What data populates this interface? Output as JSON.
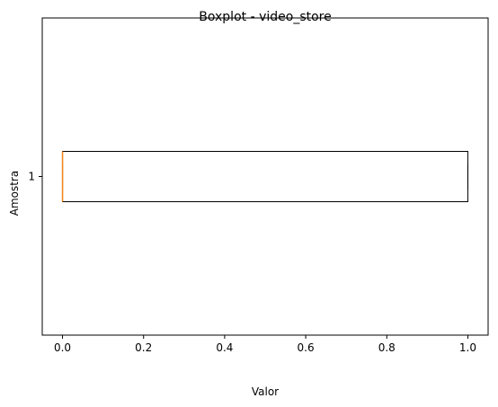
{
  "chart_data": {
    "type": "boxplot",
    "orientation": "horizontal",
    "title": "Boxplot - video_store",
    "xlabel": "Valor",
    "ylabel": "Amostra",
    "xlim": [
      -0.05,
      1.05
    ],
    "xticks": [
      0.0,
      0.2,
      0.4,
      0.6,
      0.8,
      1.0
    ],
    "xtick_labels": [
      "0.0",
      "0.2",
      "0.4",
      "0.6",
      "0.8",
      "1.0"
    ],
    "categories": [
      "1"
    ],
    "boxes": [
      {
        "category": "1",
        "whisker_low": 0.0,
        "q1": 0.0,
        "median": 0.0,
        "q3": 1.0,
        "whisker_high": 1.0
      }
    ],
    "grid": false,
    "colors": {
      "box": "#000000",
      "median": "#f58518"
    }
  }
}
